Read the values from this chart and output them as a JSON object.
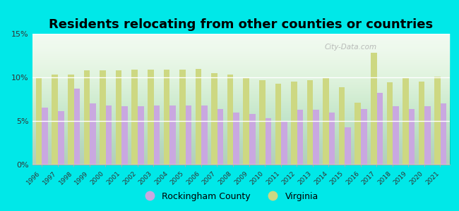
{
  "years": [
    1996,
    1997,
    1998,
    1999,
    2000,
    2001,
    2002,
    2003,
    2004,
    2005,
    2006,
    2007,
    2008,
    2009,
    2010,
    2011,
    2012,
    2013,
    2014,
    2015,
    2016,
    2017,
    2018,
    2019,
    2020,
    2021
  ],
  "rockingham": [
    6.5,
    6.1,
    8.7,
    7.0,
    6.8,
    6.7,
    6.7,
    6.8,
    6.8,
    6.8,
    6.8,
    6.4,
    6.0,
    5.8,
    5.3,
    4.9,
    6.3,
    6.3,
    6.0,
    4.3,
    6.4,
    8.2,
    6.7,
    6.4,
    6.7,
    7.0
  ],
  "virginia": [
    10.0,
    10.3,
    10.3,
    10.8,
    10.8,
    10.8,
    10.9,
    10.9,
    10.9,
    10.9,
    11.0,
    10.5,
    10.3,
    10.0,
    9.7,
    9.3,
    9.5,
    9.7,
    9.9,
    8.9,
    7.1,
    12.8,
    9.4,
    10.0,
    9.5,
    10.1
  ],
  "title": "Residents relocating from other counties or countries",
  "rockingham_color": "#c9a8e0",
  "virginia_color": "#cdd882",
  "outer_background": "#00e8e8",
  "ylim": [
    0,
    15
  ],
  "yticks": [
    0,
    5,
    10,
    15
  ],
  "ytick_labels": [
    "0%",
    "5%",
    "10%",
    "15%"
  ],
  "title_fontsize": 13,
  "legend_rockingham": "Rockingham County",
  "legend_virginia": "Virginia",
  "bar_width": 0.38
}
